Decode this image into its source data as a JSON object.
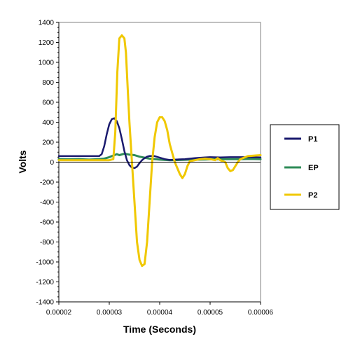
{
  "chart_data": {
    "type": "line",
    "xlabel": "Time (Seconds)",
    "ylabel": "Volts",
    "xlim": [
      2e-05,
      6e-05
    ],
    "ylim": [
      -1400,
      1400
    ],
    "x_ticks": [
      "0.00002",
      "0.00003",
      "0.00004",
      "0.00005",
      "0.00006"
    ],
    "y_ticks": [
      "1400",
      "1200",
      "1000",
      "800",
      "600",
      "400",
      "200",
      "0",
      "-200",
      "-400",
      "-600",
      "-800",
      "-1000",
      "-1200",
      "-1400"
    ],
    "grid": false,
    "legend": "right",
    "series": [
      {
        "name": "P1",
        "color": "#1a1a6e",
        "points": [
          [
            2e-05,
            60
          ],
          [
            2.4e-05,
            60
          ],
          [
            2.8e-05,
            60
          ],
          [
            2.85e-05,
            80
          ],
          [
            2.9e-05,
            160
          ],
          [
            2.95e-05,
            280
          ],
          [
            3e-05,
            380
          ],
          [
            3.05e-05,
            430
          ],
          [
            3.1e-05,
            440
          ],
          [
            3.15e-05,
            410
          ],
          [
            3.2e-05,
            340
          ],
          [
            3.25e-05,
            230
          ],
          [
            3.3e-05,
            110
          ],
          [
            3.35e-05,
            20
          ],
          [
            3.4e-05,
            -30
          ],
          [
            3.45e-05,
            -55
          ],
          [
            3.5e-05,
            -60
          ],
          [
            3.55e-05,
            -45
          ],
          [
            3.6e-05,
            -10
          ],
          [
            3.65e-05,
            20
          ],
          [
            3.7e-05,
            40
          ],
          [
            3.75e-05,
            55
          ],
          [
            3.8e-05,
            62
          ],
          [
            3.9e-05,
            60
          ],
          [
            4e-05,
            45
          ],
          [
            4.1e-05,
            30
          ],
          [
            4.2e-05,
            22
          ],
          [
            4.3e-05,
            25
          ],
          [
            4.5e-05,
            30
          ],
          [
            4.7e-05,
            40
          ],
          [
            4.9e-05,
            48
          ],
          [
            5e-05,
            50
          ],
          [
            5.2e-05,
            48
          ],
          [
            5.4e-05,
            50
          ],
          [
            5.6e-05,
            50
          ],
          [
            5.8e-05,
            50
          ],
          [
            6e-05,
            48
          ]
        ]
      },
      {
        "name": "EP",
        "color": "#2e8b57",
        "points": [
          [
            2e-05,
            30
          ],
          [
            2.2e-05,
            28
          ],
          [
            2.4e-05,
            30
          ],
          [
            2.6e-05,
            25
          ],
          [
            2.8e-05,
            30
          ],
          [
            2.9e-05,
            35
          ],
          [
            3e-05,
            50
          ],
          [
            3.1e-05,
            70
          ],
          [
            3.15e-05,
            80
          ],
          [
            3.2e-05,
            70
          ],
          [
            3.3e-05,
            85
          ],
          [
            3.4e-05,
            75
          ],
          [
            3.5e-05,
            70
          ],
          [
            3.6e-05,
            55
          ],
          [
            3.7e-05,
            45
          ],
          [
            3.8e-05,
            35
          ],
          [
            3.9e-05,
            30
          ],
          [
            4e-05,
            25
          ],
          [
            4.2e-05,
            20
          ],
          [
            4.4e-05,
            22
          ],
          [
            4.6e-05,
            25
          ],
          [
            4.8e-05,
            25
          ],
          [
            5e-05,
            28
          ],
          [
            5.2e-05,
            30
          ],
          [
            5.4e-05,
            30
          ],
          [
            5.6e-05,
            30
          ],
          [
            5.8e-05,
            32
          ],
          [
            6e-05,
            30
          ]
        ]
      },
      {
        "name": "P2",
        "color": "#f0c800",
        "points": [
          [
            2e-05,
            20
          ],
          [
            2.4e-05,
            20
          ],
          [
            2.8e-05,
            20
          ],
          [
            3e-05,
            20
          ],
          [
            3.08e-05,
            30
          ],
          [
            3.12e-05,
            300
          ],
          [
            3.16e-05,
            900
          ],
          [
            3.2e-05,
            1240
          ],
          [
            3.25e-05,
            1270
          ],
          [
            3.3e-05,
            1240
          ],
          [
            3.33e-05,
            1100
          ],
          [
            3.37e-05,
            700
          ],
          [
            3.4e-05,
            400
          ],
          [
            3.45e-05,
            0
          ],
          [
            3.5e-05,
            -400
          ],
          [
            3.55e-05,
            -800
          ],
          [
            3.6e-05,
            -980
          ],
          [
            3.65e-05,
            -1040
          ],
          [
            3.7e-05,
            -1020
          ],
          [
            3.75e-05,
            -800
          ],
          [
            3.8e-05,
            -400
          ],
          [
            3.85e-05,
            0
          ],
          [
            3.9e-05,
            250
          ],
          [
            3.95e-05,
            400
          ],
          [
            4e-05,
            450
          ],
          [
            4.05e-05,
            450
          ],
          [
            4.1e-05,
            410
          ],
          [
            4.15e-05,
            320
          ],
          [
            4.2e-05,
            180
          ],
          [
            4.3e-05,
            0
          ],
          [
            4.4e-05,
            -120
          ],
          [
            4.45e-05,
            -160
          ],
          [
            4.5e-05,
            -120
          ],
          [
            4.55e-05,
            -40
          ],
          [
            4.6e-05,
            10
          ],
          [
            4.7e-05,
            20
          ],
          [
            4.8e-05,
            30
          ],
          [
            4.9e-05,
            35
          ],
          [
            5e-05,
            30
          ],
          [
            5.1e-05,
            20
          ],
          [
            5.15e-05,
            40
          ],
          [
            5.2e-05,
            20
          ],
          [
            5.3e-05,
            0
          ],
          [
            5.35e-05,
            -60
          ],
          [
            5.4e-05,
            -90
          ],
          [
            5.45e-05,
            -80
          ],
          [
            5.5e-05,
            -40
          ],
          [
            5.55e-05,
            0
          ],
          [
            5.6e-05,
            30
          ],
          [
            5.75e-05,
            60
          ],
          [
            6e-05,
            70
          ]
        ]
      }
    ]
  }
}
